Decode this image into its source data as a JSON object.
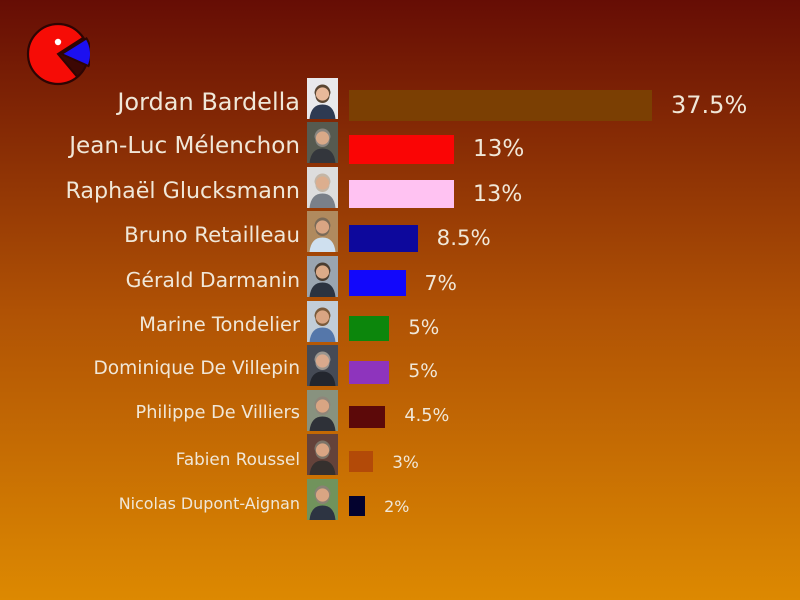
{
  "style": {
    "bg_top": "#660d05",
    "bg_mid": "#b05205",
    "bg_bottom": "#dd8901",
    "text_color": "#f0e7d8"
  },
  "logo": {
    "semantic": "pie-pacman-logo",
    "body_color": "#f60c06",
    "wedge_color": "#1c10f0",
    "outline_color": "#2d0503",
    "mouth_color": "#3c0703",
    "eye_color": "#ffffff"
  },
  "chart_data": {
    "type": "bar",
    "orientation": "horizontal",
    "title": "",
    "xlabel": "",
    "ylabel": "",
    "xlim": [
      0,
      40
    ],
    "grid": false,
    "legend": false,
    "categories": [
      "Jordan Bardella",
      "Jean-Luc Mélenchon",
      "Raphaël Glucksmann",
      "Bruno Retailleau",
      "Gérald Darmanin",
      "Marine Tondelier",
      "Dominique De Villepin",
      "Philippe De Villiers",
      "Fabien Roussel",
      "Nicolas Dupont-Aignan"
    ],
    "values": [
      37.5,
      13,
      13,
      8.5,
      7,
      5,
      5,
      4.5,
      3,
      2
    ],
    "value_labels": [
      "37.5%",
      "13%",
      "13%",
      "8.5%",
      "7%",
      "5%",
      "5%",
      "4.5%",
      "3%",
      "2%"
    ],
    "bar_colors": [
      "#7b3f03",
      "#fa0505",
      "#ffc2f2",
      "#0d089c",
      "#1208fb",
      "#0c860c",
      "#8e34bd",
      "#5c0909",
      "#b34a08",
      "#03022e"
    ]
  },
  "avatars": [
    {
      "bg": "#e9e9ec",
      "suit": "#2e3a52",
      "skin": "#e8b99a",
      "hair": "#5a4632"
    },
    {
      "bg": "#565a50",
      "suit": "#33363c",
      "skin": "#d9a988",
      "hair": "#8a8680"
    },
    {
      "bg": "#dddddd",
      "suit": "#7a8089",
      "skin": "#dcae8e",
      "hair": "#c4b6a6"
    },
    {
      "bg": "#b08a5e",
      "suit": "#cfe0ef",
      "skin": "#d9a583",
      "hair": "#7a6a58"
    },
    {
      "bg": "#9aa5b0",
      "suit": "#2b3340",
      "skin": "#dcab88",
      "hair": "#4a3d30"
    },
    {
      "bg": "#c2cdd8",
      "suit": "#5577aa",
      "skin": "#d9a583",
      "hair": "#7a5a3a"
    },
    {
      "bg": "#454a55",
      "suit": "#23262e",
      "skin": "#d9a98c",
      "hair": "#9a958e"
    },
    {
      "bg": "#88927f",
      "suit": "#2e3138",
      "skin": "#d9a583",
      "hair": "#8f867a"
    },
    {
      "bg": "#64423a",
      "suit": "#35302e",
      "skin": "#d9a583",
      "hair": "#7c7468"
    },
    {
      "bg": "#71935c",
      "suit": "#2d3442",
      "skin": "#d9a583",
      "hair": "#8a8274"
    }
  ]
}
